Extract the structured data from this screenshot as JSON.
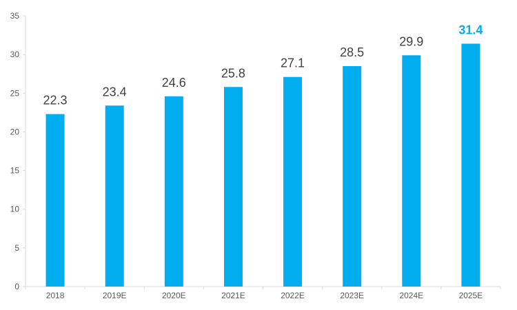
{
  "chart_data": {
    "type": "bar",
    "title": "",
    "xlabel": "",
    "ylabel": "",
    "categories": [
      "2018",
      "2019E",
      "2020E",
      "2021E",
      "2022E",
      "2023E",
      "2024E",
      "2025E"
    ],
    "values": [
      22.3,
      23.4,
      24.6,
      25.8,
      27.1,
      28.5,
      29.9,
      31.4
    ],
    "data_labels": [
      "22.3",
      "23.4",
      "24.6",
      "25.8",
      "27.1",
      "28.5",
      "29.9",
      "31.4"
    ],
    "highlight_index": 7,
    "ylim": [
      0,
      35
    ],
    "yticks": [
      "0",
      "5",
      "10",
      "15",
      "20",
      "25",
      "30",
      "35"
    ],
    "grid": false,
    "legend": "none",
    "colors": {
      "bar": "#00AEEF",
      "highlight_label": "#00AEEF",
      "label": "#404040",
      "tick": "#595959",
      "axis": "#d9d9d9"
    }
  }
}
